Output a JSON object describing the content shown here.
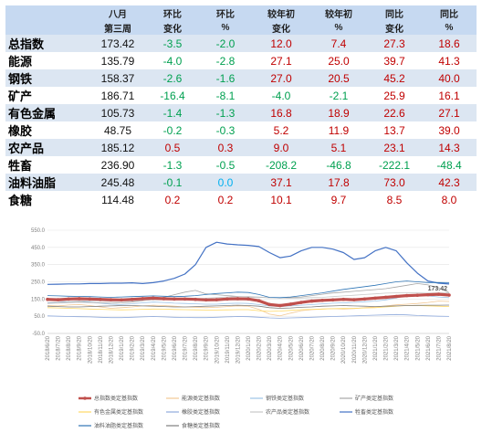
{
  "table": {
    "header_top": [
      "",
      "八月",
      "环比",
      "环比",
      "较年初",
      "较年初",
      "同比",
      "同比"
    ],
    "header_bottom": [
      "",
      "第三周",
      "变化",
      "%",
      "变化",
      "%",
      "变化",
      "%"
    ],
    "rows": [
      {
        "name": "总指数",
        "value": "173.42",
        "cells": [
          "-3.5",
          "-2.0",
          "12.0",
          "7.4",
          "27.3",
          "18.6"
        ]
      },
      {
        "name": "能源",
        "value": "135.79",
        "cells": [
          "-4.0",
          "-2.8",
          "27.1",
          "25.0",
          "39.7",
          "41.3"
        ]
      },
      {
        "name": "钢铁",
        "value": "158.37",
        "cells": [
          "-2.6",
          "-1.6",
          "27.0",
          "20.5",
          "45.2",
          "40.0"
        ]
      },
      {
        "name": "矿产",
        "value": "186.71",
        "cells": [
          "-16.4",
          "-8.1",
          "-4.0",
          "-2.1",
          "25.9",
          "16.1"
        ]
      },
      {
        "name": "有色金属",
        "value": "105.73",
        "cells": [
          "-1.4",
          "-1.3",
          "16.8",
          "18.9",
          "22.6",
          "27.1"
        ]
      },
      {
        "name": "橡胶",
        "value": "48.75",
        "cells": [
          "-0.2",
          "-0.3",
          "5.2",
          "11.9",
          "13.7",
          "39.0"
        ]
      },
      {
        "name": "农产品",
        "value": "185.12",
        "cells": [
          "0.5",
          "0.3",
          "9.0",
          "5.1",
          "23.1",
          "14.3"
        ]
      },
      {
        "name": "牲畜",
        "value": "236.90",
        "cells": [
          "-1.3",
          "-0.5",
          "-208.2",
          "-46.8",
          "-222.1",
          "-48.4"
        ]
      },
      {
        "name": "油料油脂",
        "value": "245.48",
        "cells": [
          "-0.1",
          "0.0",
          "37.1",
          "17.8",
          "73.0",
          "42.3"
        ]
      },
      {
        "name": "食糖",
        "value": "114.48",
        "cells": [
          "0.2",
          "0.2",
          "10.1",
          "9.7",
          "8.5",
          "8.0"
        ]
      }
    ]
  },
  "chart_data": {
    "type": "line",
    "ylim": [
      -50,
      550
    ],
    "yticks": [
      "-50.0",
      "50.0",
      "150.0",
      "250.0",
      "350.0",
      "450.0",
      "550.0"
    ],
    "ytick_values": [
      -50,
      50,
      150,
      250,
      350,
      450,
      550
    ],
    "x": [
      "2018/6/20",
      "2018/7/20",
      "2018/8/20",
      "2018/9/20",
      "2018/10/20",
      "2018/11/20",
      "2018/12/20",
      "2019/1/20",
      "2019/2/20",
      "2019/3/20",
      "2019/4/20",
      "2019/5/20",
      "2019/6/20",
      "2019/7/20",
      "2019/8/20",
      "2019/9/20",
      "2019/10/20",
      "2019/11/20",
      "2019/12/20",
      "2020/1/20",
      "2020/2/20",
      "2020/3/20",
      "2020/4/20",
      "2020/5/20",
      "2020/6/20",
      "2020/7/20",
      "2020/8/20",
      "2020/9/20",
      "2020/10/20",
      "2020/11/20",
      "2020/12/20",
      "2021/1/20",
      "2021/2/20",
      "2021/3/20",
      "2021/4/20",
      "2021/5/20",
      "2021/6/20",
      "2021/7/20",
      "2021/8/20"
    ],
    "last_label": "173.42",
    "legend_position": "bottom",
    "series": [
      {
        "name": "总指数类定基指数",
        "color": "#c0504d",
        "width": 3.2,
        "marker": true,
        "values": [
          148,
          146,
          150,
          152,
          150,
          148,
          146,
          145,
          148,
          152,
          155,
          152,
          150,
          150,
          148,
          145,
          146,
          150,
          152,
          150,
          140,
          118,
          112,
          120,
          130,
          138,
          142,
          145,
          148,
          146,
          150,
          155,
          160,
          165,
          170,
          172,
          175,
          178,
          173
        ]
      },
      {
        "name": "能源类定基指数",
        "color": "#f2c894",
        "width": 0.8,
        "values": [
          112,
          110,
          115,
          118,
          112,
          104,
          96,
          100,
          104,
          110,
          114,
          112,
          108,
          104,
          102,
          100,
          102,
          106,
          110,
          108,
          90,
          62,
          52,
          68,
          82,
          88,
          92,
          94,
          92,
          94,
          100,
          104,
          110,
          116,
          120,
          124,
          130,
          138,
          136
        ]
      },
      {
        "name": "钢铁类定基指数",
        "color": "#9dc3e6",
        "width": 0.8,
        "values": [
          128,
          130,
          135,
          138,
          132,
          126,
          120,
          118,
          122,
          128,
          132,
          130,
          126,
          124,
          122,
          120,
          120,
          124,
          126,
          124,
          118,
          110,
          106,
          110,
          114,
          118,
          122,
          126,
          128,
          130,
          134,
          138,
          145,
          156,
          170,
          175,
          168,
          162,
          158
        ]
      },
      {
        "name": "矿产类定基指数",
        "color": "#a6a6a6",
        "width": 0.8,
        "values": [
          125,
          128,
          130,
          132,
          130,
          128,
          126,
          128,
          132,
          140,
          150,
          160,
          175,
          190,
          200,
          180,
          175,
          170,
          165,
          162,
          160,
          158,
          156,
          158,
          162,
          170,
          178,
          185,
          190,
          195,
          200,
          205,
          210,
          220,
          230,
          240,
          232,
          215,
          187
        ]
      },
      {
        "name": "有色金属类定基指数",
        "color": "#ffd966",
        "width": 0.8,
        "values": [
          100,
          98,
          96,
          94,
          92,
          90,
          88,
          87,
          88,
          90,
          92,
          91,
          89,
          88,
          87,
          86,
          86,
          87,
          88,
          88,
          82,
          78,
          80,
          84,
          88,
          90,
          92,
          94,
          95,
          96,
          98,
          100,
          104,
          108,
          112,
          112,
          110,
          108,
          106
        ]
      },
      {
        "name": "橡胶类定基指数",
        "color": "#8faadc",
        "width": 0.8,
        "values": [
          52,
          50,
          48,
          47,
          46,
          44,
          42,
          42,
          44,
          46,
          48,
          46,
          44,
          43,
          42,
          42,
          44,
          46,
          48,
          47,
          44,
          40,
          38,
          40,
          42,
          44,
          46,
          48,
          50,
          52,
          54,
          56,
          58,
          60,
          58,
          54,
          52,
          50,
          48.75
        ]
      },
      {
        "name": "农产品类定基指数",
        "color": "#c9c9c9",
        "width": 0.8,
        "values": [
          140,
          138,
          136,
          138,
          140,
          138,
          136,
          136,
          138,
          142,
          144,
          146,
          148,
          150,
          152,
          155,
          158,
          162,
          164,
          165,
          162,
          158,
          156,
          154,
          156,
          158,
          160,
          164,
          168,
          172,
          176,
          180,
          184,
          186,
          186,
          185,
          184,
          185,
          185
        ]
      },
      {
        "name": "牲畜类定基指数",
        "color": "#4472c4",
        "width": 1.2,
        "values": [
          235,
          236,
          238,
          238,
          240,
          240,
          242,
          242,
          244,
          240,
          245,
          255,
          270,
          295,
          350,
          450,
          480,
          470,
          465,
          462,
          455,
          420,
          390,
          400,
          430,
          450,
          450,
          440,
          420,
          380,
          390,
          430,
          450,
          430,
          360,
          300,
          255,
          242,
          237
        ]
      },
      {
        "name": "油料油脂类定基指数",
        "color": "#2e75b6",
        "width": 0.8,
        "values": [
          170,
          168,
          166,
          165,
          164,
          162,
          160,
          162,
          164,
          166,
          168,
          166,
          164,
          166,
          170,
          176,
          182,
          186,
          190,
          188,
          176,
          160,
          158,
          162,
          170,
          178,
          186,
          196,
          206,
          214,
          222,
          230,
          240,
          250,
          255,
          250,
          246,
          246,
          245
        ]
      },
      {
        "name": "食糖类定基指数",
        "color": "#7f7f7f",
        "width": 0.8,
        "values": [
          108,
          106,
          104,
          104,
          106,
          108,
          110,
          112,
          112,
          110,
          108,
          106,
          104,
          104,
          106,
          108,
          110,
          112,
          114,
          112,
          108,
          100,
          96,
          98,
          102,
          104,
          108,
          110,
          112,
          110,
          108,
          106,
          108,
          110,
          112,
          113,
          114,
          114,
          114.48
        ]
      }
    ]
  }
}
